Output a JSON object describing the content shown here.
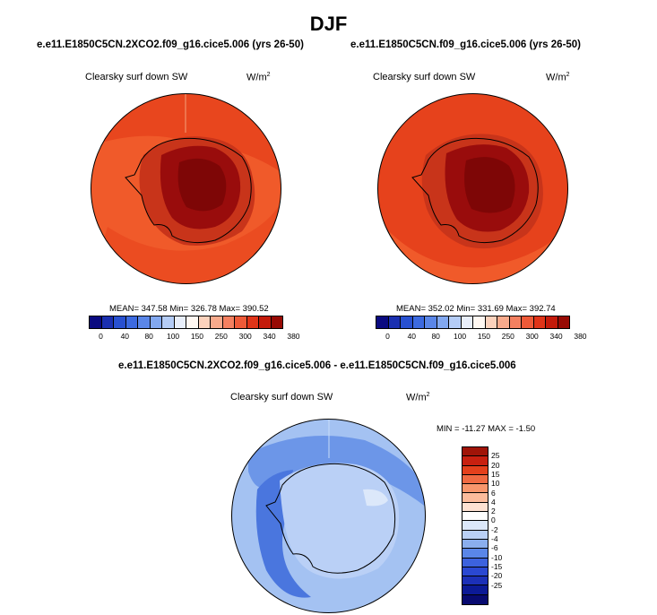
{
  "season": "DJF",
  "panels": [
    {
      "case_title": "e.e11.E1850C5CN.2XCO2.f09_g16.cice5.006 (yrs 26-50)",
      "variable": "Clearsky surf down SW",
      "unit_base": "W/m",
      "unit_exp": "2",
      "stats": "MEAN= 347.58  Min= 326.78  Max= 390.52",
      "colors": {
        "ocean": "#e8461e",
        "ocean_light": "#f05a2a",
        "coast": "#c8341a",
        "interior": "#990c0c",
        "core": "#7e0606"
      }
    },
    {
      "case_title": "e.e11.E1850C5CN.f09_g16.cice5.006 (yrs 26-50)",
      "variable": "Clearsky surf down SW",
      "unit_base": "W/m",
      "unit_exp": "2",
      "stats": "MEAN= 352.02  Min= 331.69  Max= 392.74",
      "colors": {
        "ocean": "#e6421c",
        "ocean_light": "#f05a2a",
        "coast": "#c8341a",
        "interior": "#990c0c",
        "core": "#7e0606"
      }
    }
  ],
  "abs_colorbar": {
    "colors": [
      "#0a0a80",
      "#1a2fb0",
      "#2850d0",
      "#3c6ae0",
      "#5a86e8",
      "#82a8f0",
      "#b4ccf6",
      "#e8eefa",
      "#fff8f2",
      "#fcd2bc",
      "#f8aa8c",
      "#f48060",
      "#ee5a38",
      "#e03418",
      "#c41a0a",
      "#980a04"
    ],
    "labels": [
      "0",
      "40",
      "80",
      "100",
      "150",
      "250",
      "300",
      "340",
      "380"
    ]
  },
  "diff_panel": {
    "title": "e.e11.E1850C5CN.2XCO2.f09_g16.cice5.006 - e.e11.E1850C5CN.f09_g16.cice5.006",
    "variable": "Clearsky surf down SW",
    "unit_base": "W/m",
    "unit_exp": "2",
    "stats": "MIN = -11.27  MAX = -1.50",
    "colors": {
      "ocean": "#a4c2f2",
      "ocean_dark": "#6c96e8",
      "band": "#4a76de",
      "land": "#bad0f6",
      "patch": "#dce8fa"
    }
  },
  "diff_colorbar": {
    "colors": [
      "#a01408",
      "#c82010",
      "#e4401c",
      "#f06a42",
      "#f8966c",
      "#fcbc9c",
      "#fee2d2",
      "#ffffff",
      "#dce8fa",
      "#bad0f6",
      "#8aaeee",
      "#5a86e8",
      "#3c62de",
      "#2a48d2",
      "#1c30b8",
      "#0c1a96",
      "#080a70"
    ],
    "labels": [
      "25",
      "20",
      "15",
      "10",
      "6",
      "4",
      "2",
      "0",
      "-2",
      "-4",
      "-6",
      "-10",
      "-15",
      "-20",
      "-25"
    ]
  }
}
